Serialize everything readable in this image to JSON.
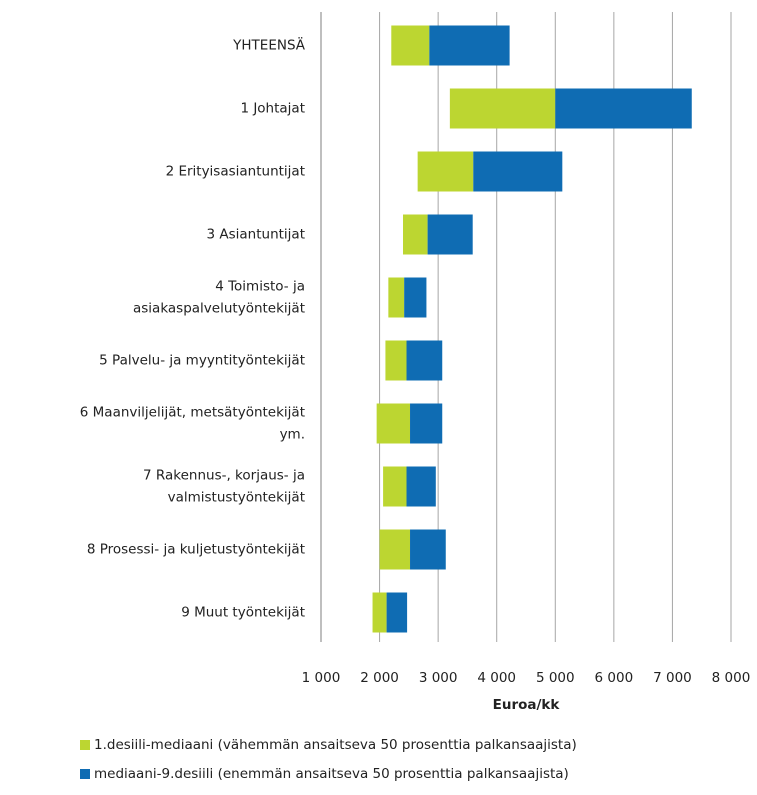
{
  "chart_data": {
    "type": "floating-bar",
    "orientation": "horizontal",
    "x_label": "Euroa/kk",
    "categories": [
      "YHTEENSÄ",
      "1 Johtajat",
      "2 Erityisasiantuntijat",
      "3 Asiantuntijat",
      [
        "4 Toimisto- ja",
        "asiakaspalvelutyöntekijät"
      ],
      "5 Palvelu- ja myyntityöntekijät",
      [
        "6 Maanviljelijät, metsätyöntekijät",
        "ym."
      ],
      [
        "7 Rakennus-, korjaus- ja",
        "valmistustyöntekijät"
      ],
      "8 Prosessi- ja kuljetustyöntekijät",
      "9 Muut työntekijät"
    ],
    "series": [
      {
        "name": "1.desiili-mediaani (vähemmän ansaitseva 50 prosenttia palkansaajista)",
        "color": "#bcd631",
        "values": [
          [
            2200,
            2850
          ],
          [
            3200,
            5000
          ],
          [
            2650,
            3600
          ],
          [
            2400,
            2820
          ],
          [
            2150,
            2420
          ],
          [
            2100,
            2460
          ],
          [
            1950,
            2520
          ],
          [
            2060,
            2460
          ],
          [
            2000,
            2520
          ],
          [
            1880,
            2120
          ]
        ]
      },
      {
        "name": "mediaani-9.desiili (enemmän ansaitseva 50 prosenttia palkansaajista)",
        "color": "#0f6cb3",
        "values": [
          [
            2850,
            4220
          ],
          [
            5000,
            7330
          ],
          [
            3600,
            5120
          ],
          [
            2820,
            3590
          ],
          [
            2420,
            2800
          ],
          [
            2460,
            3070
          ],
          [
            2520,
            3070
          ],
          [
            2460,
            2960
          ],
          [
            2520,
            3130
          ],
          [
            2120,
            2470
          ]
        ]
      }
    ],
    "xlim": [
      1000,
      8000
    ],
    "xticks": [
      {
        "value": 1000,
        "label": "1 000"
      },
      {
        "value": 2000,
        "label": "2 000"
      },
      {
        "value": 3000,
        "label": "3 000"
      },
      {
        "value": 4000,
        "label": "4 000"
      },
      {
        "value": 5000,
        "label": "5 000"
      },
      {
        "value": 6000,
        "label": "6 000"
      },
      {
        "value": 7000,
        "label": "7 000"
      },
      {
        "value": 8000,
        "label": "8 000"
      }
    ],
    "grid": true,
    "legend": "bottom"
  }
}
